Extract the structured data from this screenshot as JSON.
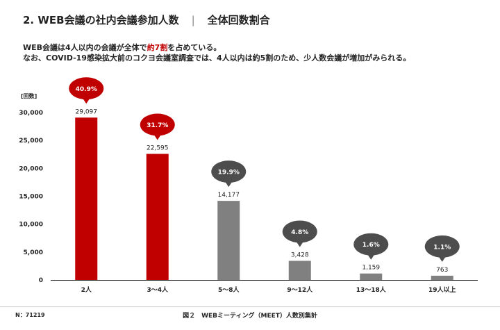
{
  "header": {
    "title": "2.  WEB会議の社内会議参加人数",
    "separator": "|",
    "subtitle": "全体回数割合"
  },
  "description": {
    "line1_pre": "WEB会議は4人以内の会議が全体で",
    "line1_highlight": "約7割",
    "line1_post": "を占めている。",
    "line2": "なお、COVID-19感染拡大前のコクヨ会議室調査では、4人以内は約5割のため、少人数会議が増加がみられる。"
  },
  "colors": {
    "highlight": "#c00000",
    "bar_red": "#c00000",
    "bar_gray": "#808080",
    "bubble_gray": "#4d4d4d"
  },
  "chart_data": {
    "type": "bar",
    "ylabel": "[回数]",
    "ylim": [
      0,
      30000
    ],
    "yticks": [
      0,
      5000,
      10000,
      15000,
      20000,
      25000,
      30000
    ],
    "ytick_labels": [
      "0",
      "5,000",
      "10,000",
      "15,000",
      "20,000",
      "25,000",
      "30,000"
    ],
    "categories": [
      "2人",
      "3～4人",
      "5～8人",
      "9～12人",
      "13～18人",
      "19人以上"
    ],
    "values": [
      29097,
      22595,
      14177,
      3428,
      1159,
      763
    ],
    "value_labels": [
      "29,097",
      "22,595",
      "14,177",
      "3,428",
      "1,159",
      "763"
    ],
    "percentages": [
      "40.9%",
      "31.7%",
      "19.9%",
      "4.8%",
      "1.6%",
      "1.1%"
    ],
    "bar_colors": [
      "#c00000",
      "#c00000",
      "#808080",
      "#808080",
      "#808080",
      "#808080"
    ],
    "bubble_colors": [
      "#c00000",
      "#c00000",
      "#4d4d4d",
      "#4d4d4d",
      "#4d4d4d",
      "#4d4d4d"
    ],
    "grid": false
  },
  "footer": {
    "n_label": "N：71219",
    "caption": "図２　WEBミーティング（MEET）人数別集計"
  }
}
